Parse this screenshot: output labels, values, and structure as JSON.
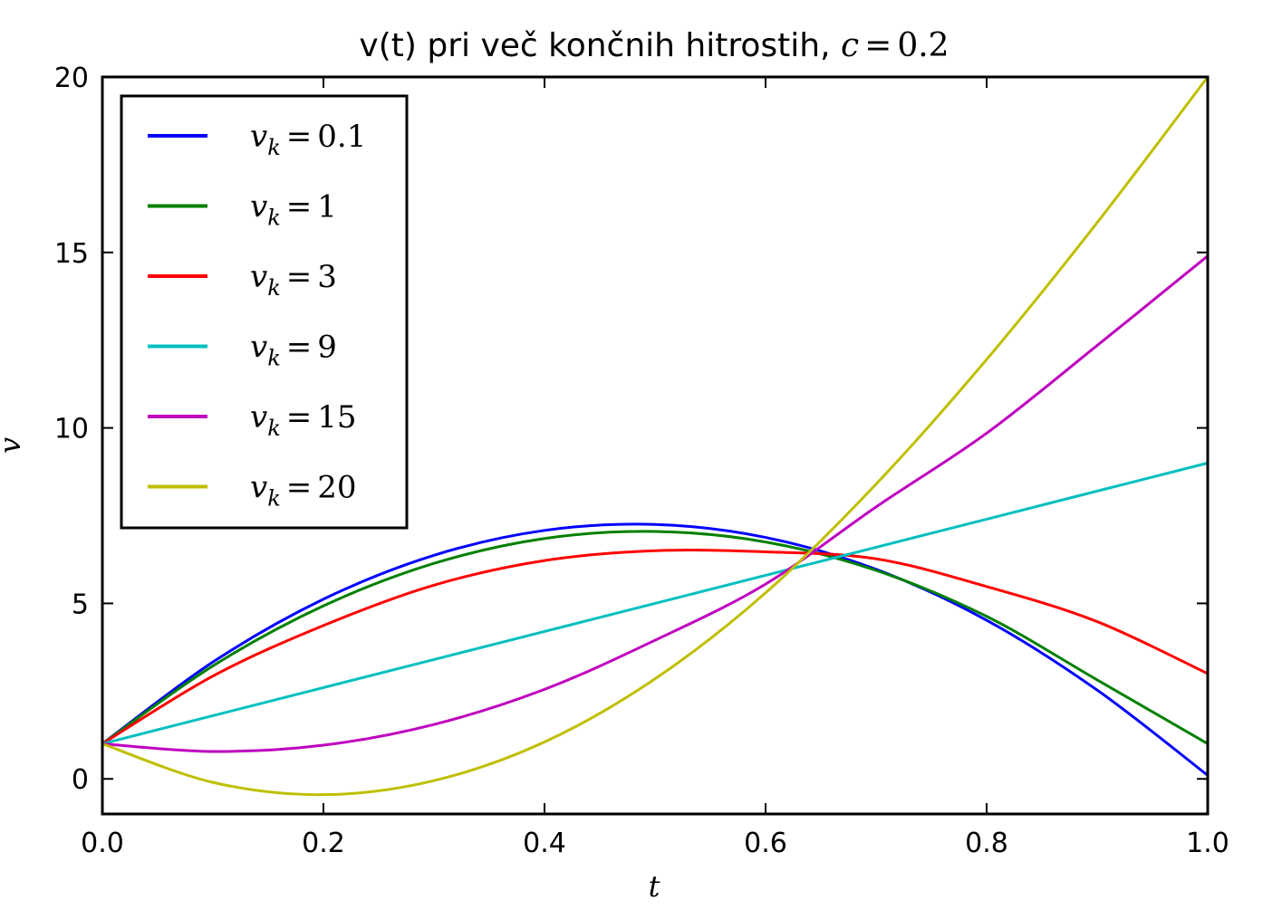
{
  "chart_data": {
    "type": "line",
    "title": {
      "text": "v(t) pri več končnih hitrostih, ",
      "math_var": "c",
      "math_eq": "=",
      "math_val": "0.2"
    },
    "xlabel": "t",
    "ylabel": "v",
    "xlim": [
      0.0,
      1.0
    ],
    "ylim": [
      -1,
      20
    ],
    "xticks": [
      0.0,
      0.2,
      0.4,
      0.6,
      0.8,
      1.0
    ],
    "xtick_labels": [
      "0.0",
      "0.2",
      "0.4",
      "0.6",
      "0.8",
      "1.0"
    ],
    "yticks": [
      0,
      5,
      10,
      15,
      20
    ],
    "ytick_labels": [
      "0",
      "5",
      "10",
      "15",
      "20"
    ],
    "grid": false,
    "legend_position": "top-left",
    "x": [
      0.0,
      0.1,
      0.2,
      0.3,
      0.4,
      0.5,
      0.6,
      0.7,
      0.8,
      0.9,
      1.0
    ],
    "series": [
      {
        "name": "v_k = 0.1",
        "legend_var": "v",
        "legend_sub": "k",
        "legend_val": "0.1",
        "color": "#0000ff",
        "values": [
          1.0,
          3.33,
          5.12,
          6.37,
          7.08,
          7.25,
          6.88,
          5.97,
          4.52,
          2.53,
          0.1
        ]
      },
      {
        "name": "v_k = 1",
        "legend_var": "v",
        "legend_sub": "k",
        "legend_val": "1",
        "color": "#008000",
        "values": [
          1.0,
          3.22,
          4.93,
          6.14,
          6.85,
          7.05,
          6.75,
          5.94,
          4.63,
          2.82,
          1.0
        ]
      },
      {
        "name": "v_k = 3",
        "legend_var": "v",
        "legend_sub": "k",
        "legend_val": "3",
        "color": "#ff0000",
        "values": [
          1.0,
          2.93,
          4.37,
          5.52,
          6.22,
          6.5,
          6.47,
          6.27,
          5.48,
          4.48,
          3.0
        ]
      },
      {
        "name": "v_k = 9",
        "legend_var": "v",
        "legend_sub": "k",
        "legend_val": "9",
        "color": "#00bfbf",
        "values": [
          1.0,
          1.8,
          2.6,
          3.4,
          4.2,
          5.0,
          5.8,
          6.6,
          7.4,
          8.2,
          9.0
        ]
      },
      {
        "name": "v_k = 15",
        "legend_var": "v",
        "legend_sub": "k",
        "legend_val": "15",
        "color": "#bf00bf",
        "values": [
          1.0,
          0.78,
          0.96,
          1.55,
          2.55,
          3.95,
          5.55,
          7.75,
          9.85,
          12.35,
          14.9
        ]
      },
      {
        "name": "v_k = 20",
        "legend_var": "v",
        "legend_sub": "k",
        "legend_val": "20",
        "color": "#bfbf00",
        "values": [
          1.0,
          -0.1,
          -0.45,
          -0.05,
          1.05,
          2.85,
          5.3,
          8.4,
          11.95,
          15.85,
          20.0
        ]
      }
    ]
  }
}
